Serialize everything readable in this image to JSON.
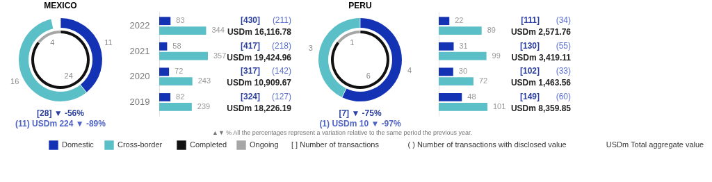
{
  "chart_data": [
    {
      "type": "donut",
      "title": "MEXICO",
      "data_labels": true,
      "series": [
        {
          "values": [
            24,
            4
          ],
          "colors": [
            "#111111",
            "#a6a6a6"
          ]
        },
        {
          "values": [
            11,
            16
          ],
          "colors": [
            "#1432b4",
            "#5bbfc8"
          ]
        }
      ],
      "annotations": [
        "[28] ▼ -56%",
        "(11) USDm 224 ▼ -89%"
      ]
    },
    {
      "type": "bar",
      "orientation": "horizontal",
      "data_labels": true,
      "categories": [
        "2022",
        "2021",
        "2020",
        "2019"
      ],
      "series": [
        {
          "color": "#1432b4",
          "values": [
            83,
            58,
            72,
            82
          ]
        },
        {
          "color": "#5bbfc8",
          "values": [
            344,
            357,
            243,
            239
          ]
        }
      ],
      "annotations": [
        "[430]",
        "(211)",
        "USDm 16,116.78",
        "[417]",
        "(218)",
        "USDm 19,424.96",
        "[317]",
        "(142)",
        "USDm 10,909.67",
        "[324]",
        "(127)",
        "USDm 18,226.19"
      ]
    },
    {
      "type": "donut",
      "title": "PERU",
      "data_labels": true,
      "series": [
        {
          "values": [
            6,
            1
          ],
          "colors": [
            "#111111",
            "#a6a6a6"
          ]
        },
        {
          "values": [
            4,
            3
          ],
          "colors": [
            "#1432b4",
            "#5bbfc8"
          ]
        }
      ],
      "annotations": [
        "[7] ▼ -75%",
        "(1) USDm 10 ▼ -97%"
      ]
    },
    {
      "type": "bar",
      "orientation": "horizontal",
      "data_labels": true,
      "categories": [
        null,
        null,
        null,
        null
      ],
      "series": [
        {
          "color": "#1432b4",
          "values": [
            22,
            31,
            30,
            48
          ]
        },
        {
          "color": "#5bbfc8",
          "values": [
            89,
            99,
            72,
            101
          ]
        }
      ],
      "annotations": [
        "[111]",
        "(34)",
        "USDm 2,571.76",
        "[130]",
        "(55)",
        "USDm 3,419.11",
        "[102]",
        "(33)",
        "USDm 1,463.56",
        "[149]",
        "(60)",
        "USDm 8,359.85"
      ]
    },
    {
      "type": "other",
      "categories": [
        "Domestic",
        "Cross-border",
        "Completed",
        "Ongoing"
      ],
      "colors": [
        "#1432b4",
        "#5bbfc8",
        "#111111",
        "#a6a6a6"
      ],
      "annotations": [
        "▲▼ % All the percentages represent a variation relative to the same period the previous year.",
        "[ ] Number of transactions",
        "( ) Number of transactions with disclosed value",
        "USDm Total aggregate value"
      ]
    }
  ]
}
